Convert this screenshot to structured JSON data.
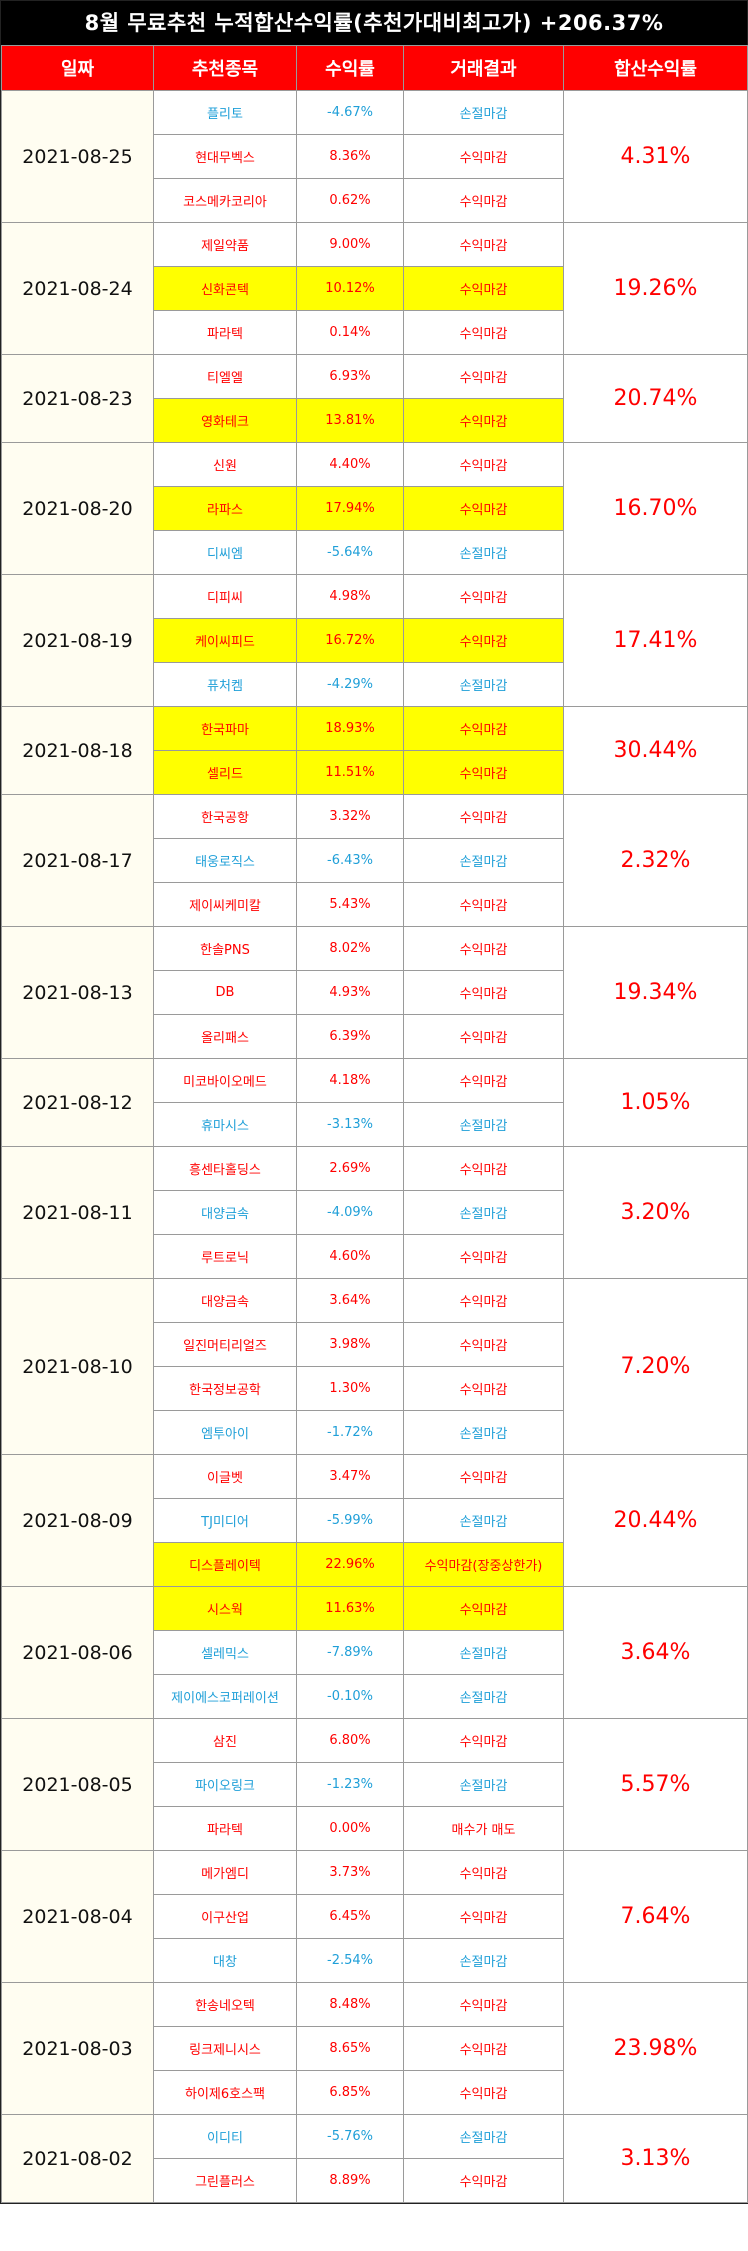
{
  "title": "8월 무료추천 누적합산수익률(추천가대비최고가) +206.37%",
  "headers": [
    "일짜",
    "추천종목",
    "수익률",
    "거래결과",
    "합산수익률"
  ],
  "groups": [
    {
      "date": "2021-08-25",
      "cum": "4.31%",
      "rows": [
        {
          "stock": "플리토",
          "ret": "-4.67%",
          "result": "손절마감",
          "tone": "loss",
          "hl": false
        },
        {
          "stock": "현대무벡스",
          "ret": "8.36%",
          "result": "수익마감",
          "tone": "gain",
          "hl": false
        },
        {
          "stock": "코스메카코리아",
          "ret": "0.62%",
          "result": "수익마감",
          "tone": "gain",
          "hl": false
        }
      ]
    },
    {
      "date": "2021-08-24",
      "cum": "19.26%",
      "rows": [
        {
          "stock": "제일약품",
          "ret": "9.00%",
          "result": "수익마감",
          "tone": "gain",
          "hl": false
        },
        {
          "stock": "신화콘텍",
          "ret": "10.12%",
          "result": "수익마감",
          "tone": "gain",
          "hl": true
        },
        {
          "stock": "파라텍",
          "ret": "0.14%",
          "result": "수익마감",
          "tone": "gain",
          "hl": false
        }
      ]
    },
    {
      "date": "2021-08-23",
      "cum": "20.74%",
      "rows": [
        {
          "stock": "티엘엘",
          "ret": "6.93%",
          "result": "수익마감",
          "tone": "gain",
          "hl": false
        },
        {
          "stock": "영화테크",
          "ret": "13.81%",
          "result": "수익마감",
          "tone": "gain",
          "hl": true
        }
      ]
    },
    {
      "date": "2021-08-20",
      "cum": "16.70%",
      "rows": [
        {
          "stock": "신원",
          "ret": "4.40%",
          "result": "수익마감",
          "tone": "gain",
          "hl": false
        },
        {
          "stock": "라파스",
          "ret": "17.94%",
          "result": "수익마감",
          "tone": "gain",
          "hl": true
        },
        {
          "stock": "디씨엠",
          "ret": "-5.64%",
          "result": "손절마감",
          "tone": "loss",
          "hl": false
        }
      ]
    },
    {
      "date": "2021-08-19",
      "cum": "17.41%",
      "rows": [
        {
          "stock": "디피씨",
          "ret": "4.98%",
          "result": "수익마감",
          "tone": "gain",
          "hl": false
        },
        {
          "stock": "케이씨피드",
          "ret": "16.72%",
          "result": "수익마감",
          "tone": "gain",
          "hl": true
        },
        {
          "stock": "퓨처켐",
          "ret": "-4.29%",
          "result": "손절마감",
          "tone": "loss",
          "hl": false
        }
      ]
    },
    {
      "date": "2021-08-18",
      "cum": "30.44%",
      "rows": [
        {
          "stock": "한국파마",
          "ret": "18.93%",
          "result": "수익마감",
          "tone": "gain",
          "hl": true
        },
        {
          "stock": "셀리드",
          "ret": "11.51%",
          "result": "수익마감",
          "tone": "gain",
          "hl": true
        }
      ]
    },
    {
      "date": "2021-08-17",
      "cum": "2.32%",
      "rows": [
        {
          "stock": "한국공항",
          "ret": "3.32%",
          "result": "수익마감",
          "tone": "gain",
          "hl": false
        },
        {
          "stock": "태웅로직스",
          "ret": "-6.43%",
          "result": "손절마감",
          "tone": "loss",
          "hl": false
        },
        {
          "stock": "제이씨케미칼",
          "ret": "5.43%",
          "result": "수익마감",
          "tone": "gain",
          "hl": false
        }
      ]
    },
    {
      "date": "2021-08-13",
      "cum": "19.34%",
      "rows": [
        {
          "stock": "한솔PNS",
          "ret": "8.02%",
          "result": "수익마감",
          "tone": "gain",
          "hl": false
        },
        {
          "stock": "DB",
          "ret": "4.93%",
          "result": "수익마감",
          "tone": "gain",
          "hl": false
        },
        {
          "stock": "올리패스",
          "ret": "6.39%",
          "result": "수익마감",
          "tone": "gain",
          "hl": false
        }
      ]
    },
    {
      "date": "2021-08-12",
      "cum": "1.05%",
      "rows": [
        {
          "stock": "미코바이오메드",
          "ret": "4.18%",
          "result": "수익마감",
          "tone": "gain",
          "hl": false
        },
        {
          "stock": "휴마시스",
          "ret": "-3.13%",
          "result": "손절마감",
          "tone": "loss",
          "hl": false
        }
      ]
    },
    {
      "date": "2021-08-11",
      "cum": "3.20%",
      "rows": [
        {
          "stock": "흥센타홀딩스",
          "ret": "2.69%",
          "result": "수익마감",
          "tone": "gain",
          "hl": false
        },
        {
          "stock": "대양금속",
          "ret": "-4.09%",
          "result": "손절마감",
          "tone": "loss",
          "hl": false
        },
        {
          "stock": "루트로닉",
          "ret": "4.60%",
          "result": "수익마감",
          "tone": "gain",
          "hl": false
        }
      ]
    },
    {
      "date": "2021-08-10",
      "cum": "7.20%",
      "rows": [
        {
          "stock": "대양금속",
          "ret": "3.64%",
          "result": "수익마감",
          "tone": "gain",
          "hl": false
        },
        {
          "stock": "일진머티리얼즈",
          "ret": "3.98%",
          "result": "수익마감",
          "tone": "gain",
          "hl": false
        },
        {
          "stock": "한국정보공학",
          "ret": "1.30%",
          "result": "수익마감",
          "tone": "gain",
          "hl": false
        },
        {
          "stock": "엠투아이",
          "ret": "-1.72%",
          "result": "손절마감",
          "tone": "loss",
          "hl": false
        }
      ]
    },
    {
      "date": "2021-08-09",
      "cum": "20.44%",
      "rows": [
        {
          "stock": "이글벳",
          "ret": "3.47%",
          "result": "수익마감",
          "tone": "gain",
          "hl": false
        },
        {
          "stock": "TJ미디어",
          "ret": "-5.99%",
          "result": "손절마감",
          "tone": "loss",
          "hl": false
        },
        {
          "stock": "디스플레이텍",
          "ret": "22.96%",
          "result": "수익마감(장중상한가)",
          "tone": "gain",
          "hl": true
        }
      ]
    },
    {
      "date": "2021-08-06",
      "cum": "3.64%",
      "rows": [
        {
          "stock": "시스웍",
          "ret": "11.63%",
          "result": "수익마감",
          "tone": "gain",
          "hl": true
        },
        {
          "stock": "셀레믹스",
          "ret": "-7.89%",
          "result": "손절마감",
          "tone": "loss",
          "hl": false
        },
        {
          "stock": "제이에스코퍼레이션",
          "ret": "-0.10%",
          "result": "손절마감",
          "tone": "loss",
          "hl": false
        }
      ]
    },
    {
      "date": "2021-08-05",
      "cum": "5.57%",
      "rows": [
        {
          "stock": "삼진",
          "ret": "6.80%",
          "result": "수익마감",
          "tone": "gain",
          "hl": false
        },
        {
          "stock": "파이오링크",
          "ret": "-1.23%",
          "result": "손절마감",
          "tone": "loss",
          "hl": false
        },
        {
          "stock": "파라텍",
          "ret": "0.00%",
          "result": "매수가 매도",
          "tone": "gain",
          "hl": false
        }
      ]
    },
    {
      "date": "2021-08-04",
      "cum": "7.64%",
      "rows": [
        {
          "stock": "메가엠디",
          "ret": "3.73%",
          "result": "수익마감",
          "tone": "gain",
          "hl": false
        },
        {
          "stock": "이구산업",
          "ret": "6.45%",
          "result": "수익마감",
          "tone": "gain",
          "hl": false
        },
        {
          "stock": "대창",
          "ret": "-2.54%",
          "result": "손절마감",
          "tone": "loss",
          "hl": false
        }
      ]
    },
    {
      "date": "2021-08-03",
      "cum": "23.98%",
      "rows": [
        {
          "stock": "한송네오텍",
          "ret": "8.48%",
          "result": "수익마감",
          "tone": "gain",
          "hl": false
        },
        {
          "stock": "링크제니시스",
          "ret": "8.65%",
          "result": "수익마감",
          "tone": "gain",
          "hl": false
        },
        {
          "stock": "하이제6호스팩",
          "ret": "6.85%",
          "result": "수익마감",
          "tone": "gain",
          "hl": false
        }
      ]
    },
    {
      "date": "2021-08-02",
      "cum": "3.13%",
      "rows": [
        {
          "stock": "이디티",
          "ret": "-5.76%",
          "result": "손절마감",
          "tone": "loss",
          "hl": false
        },
        {
          "stock": "그린플러스",
          "ret": "8.89%",
          "result": "수익마감",
          "tone": "gain",
          "hl": false
        }
      ]
    }
  ],
  "colors": {
    "header_bg": "#ff0000",
    "gain": "#ff0000",
    "loss": "#1f9fd8",
    "highlight": "#ffff00",
    "date_bg": "#fffdf1"
  }
}
